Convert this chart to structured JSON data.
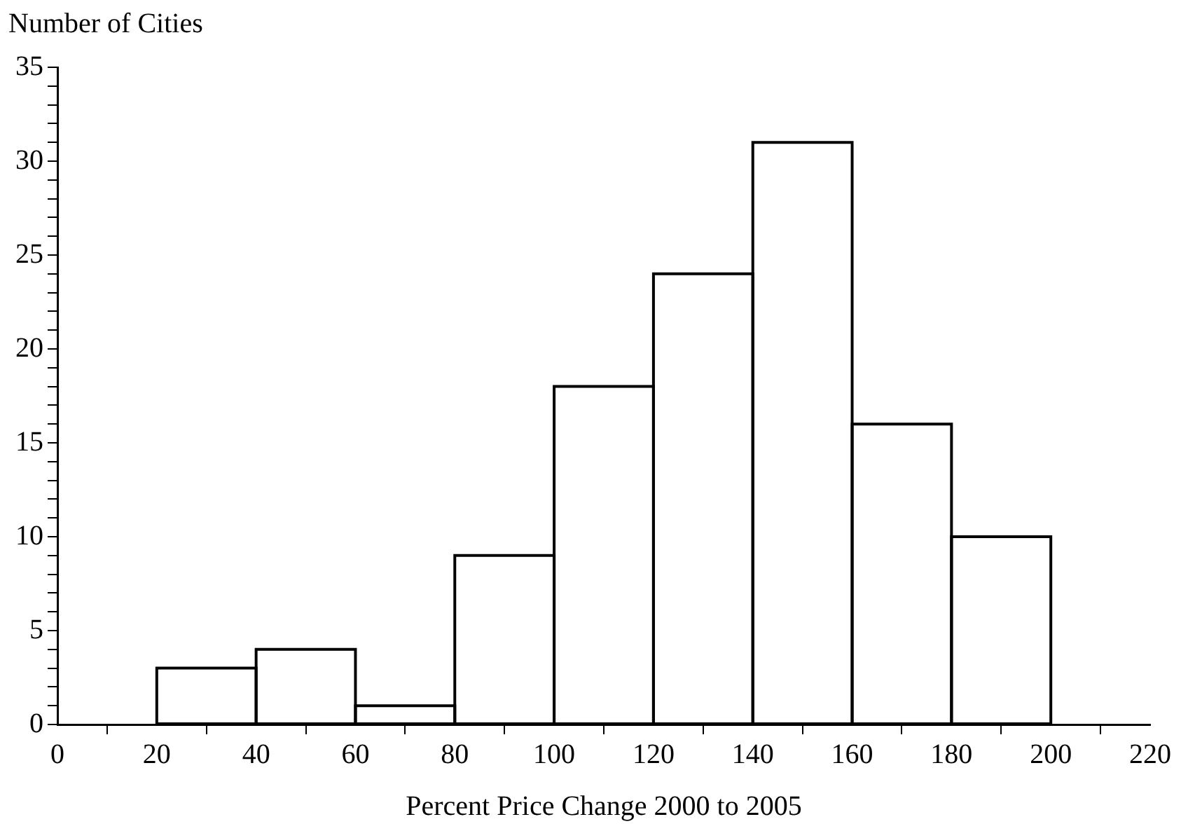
{
  "chart_data": {
    "type": "histogram",
    "xlabel": "Percent Price Change 2000 to 2005",
    "ylabel": "Number of Cities",
    "bins": [
      20,
      40,
      60,
      80,
      100,
      120,
      140,
      160,
      180,
      200
    ],
    "values": [
      3,
      4,
      1,
      9,
      18,
      24,
      31,
      16,
      10
    ],
    "color": "#000000",
    "xlim": [
      0,
      220
    ],
    "xticks": [
      0,
      20,
      40,
      60,
      80,
      100,
      120,
      140,
      160,
      180,
      200,
      220
    ],
    "ylim": [
      0,
      35
    ],
    "yticks": [
      0,
      {
        "value": 1,
        "label": null
      },
      {
        "value": 2,
        "label": null
      },
      {
        "value": 3,
        "label": null
      },
      {
        "value": 4,
        "label": null
      },
      5,
      {
        "value": 6,
        "label": null
      },
      {
        "value": 7,
        "label": null
      },
      {
        "value": 8,
        "label": null
      },
      {
        "value": 9,
        "label": null
      },
      10,
      {
        "value": 11,
        "label": null
      },
      {
        "value": 12,
        "label": null
      },
      {
        "value": 13,
        "label": null
      },
      {
        "value": 14,
        "label": null
      },
      15,
      {
        "value": 16,
        "label": null
      },
      {
        "value": 17,
        "label": null
      },
      {
        "value": 18,
        "label": null
      },
      {
        "value": 19,
        "label": null
      },
      20,
      {
        "value": 21,
        "label": null
      },
      {
        "value": 22,
        "label": null
      },
      {
        "value": 23,
        "label": null
      },
      {
        "value": 24,
        "label": null
      },
      25,
      {
        "value": 26,
        "label": null
      },
      {
        "value": 27,
        "label": null
      },
      {
        "value": 28,
        "label": null
      },
      {
        "value": 29,
        "label": null
      },
      30,
      {
        "value": 31,
        "label": null
      },
      {
        "value": 32,
        "label": null
      },
      {
        "value": 33,
        "label": null
      },
      {
        "value": 34,
        "label": null
      },
      35
    ],
    "grid": false,
    "legend": false
  }
}
